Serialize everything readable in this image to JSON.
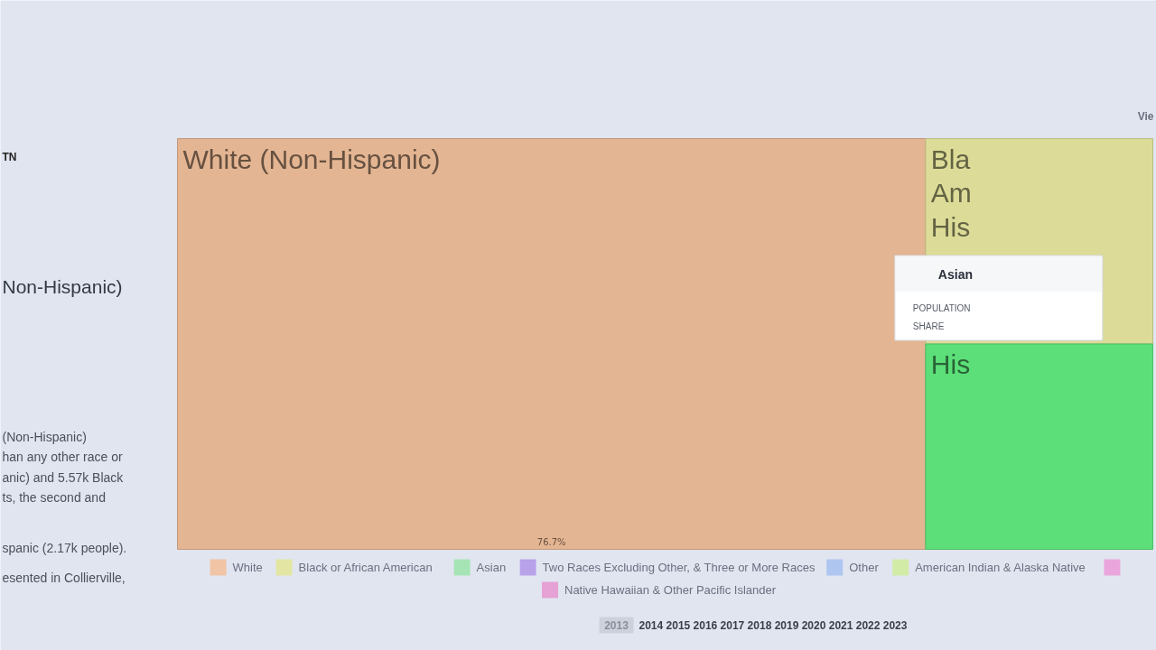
{
  "chart_data": {
    "type": "other",
    "categories": [
      "White (Non-Hispanic)",
      "Bla\nAm\nHis",
      "His"
    ],
    "values": [
      76.7,
      null,
      null
    ],
    "value_labels": [
      "76.7%",
      null,
      null
    ],
    "colors": [
      "#e4b592",
      "#dcdc98",
      "#5cdf78"
    ],
    "series": [
      {
        "name": "White",
        "color": "#f0c4a4",
        "values": [
          null,
          null,
          null
        ]
      },
      {
        "name": "Black or African American",
        "color": "#e2e6a2",
        "values": [
          null,
          null,
          null
        ]
      },
      {
        "name": "Asian",
        "color": "#a6e4b6",
        "values": [
          null,
          null,
          null
        ]
      },
      {
        "name": "Two Races Excluding Other, & Three or More Races",
        "color": "#b8a2ea",
        "values": [
          null,
          null,
          null
        ]
      },
      {
        "name": "Other",
        "color": "#aec6f0",
        "values": [
          null,
          null,
          null
        ]
      },
      {
        "name": "American Indian & Alaska Native",
        "color": "#d2eca8",
        "values": [
          null,
          null,
          null
        ]
      },
      {
        "color": "#eaa6dc",
        "values": [
          null,
          null,
          null
        ]
      },
      {
        "name": "Native Hawaiian & Other Pacific Islander",
        "color": "#e6a2d4",
        "values": [
          null,
          null,
          null
        ]
      }
    ],
    "legend": "bottom",
    "annotations": [
      "TN",
      "Non-Hispanic)",
      "(Non-Hispanic)",
      "han any other race or",
      "anic) and 5.57k Black",
      "ts, the second and",
      "spanic (2.17k people).",
      "esented in Collierville,",
      "Vie",
      "Asian",
      "POPULATION",
      "SHARE",
      "2013",
      "2014",
      "2015",
      "2016",
      "2017",
      "2018",
      "2019",
      "2020",
      "2021",
      "2022",
      "2023"
    ]
  }
}
